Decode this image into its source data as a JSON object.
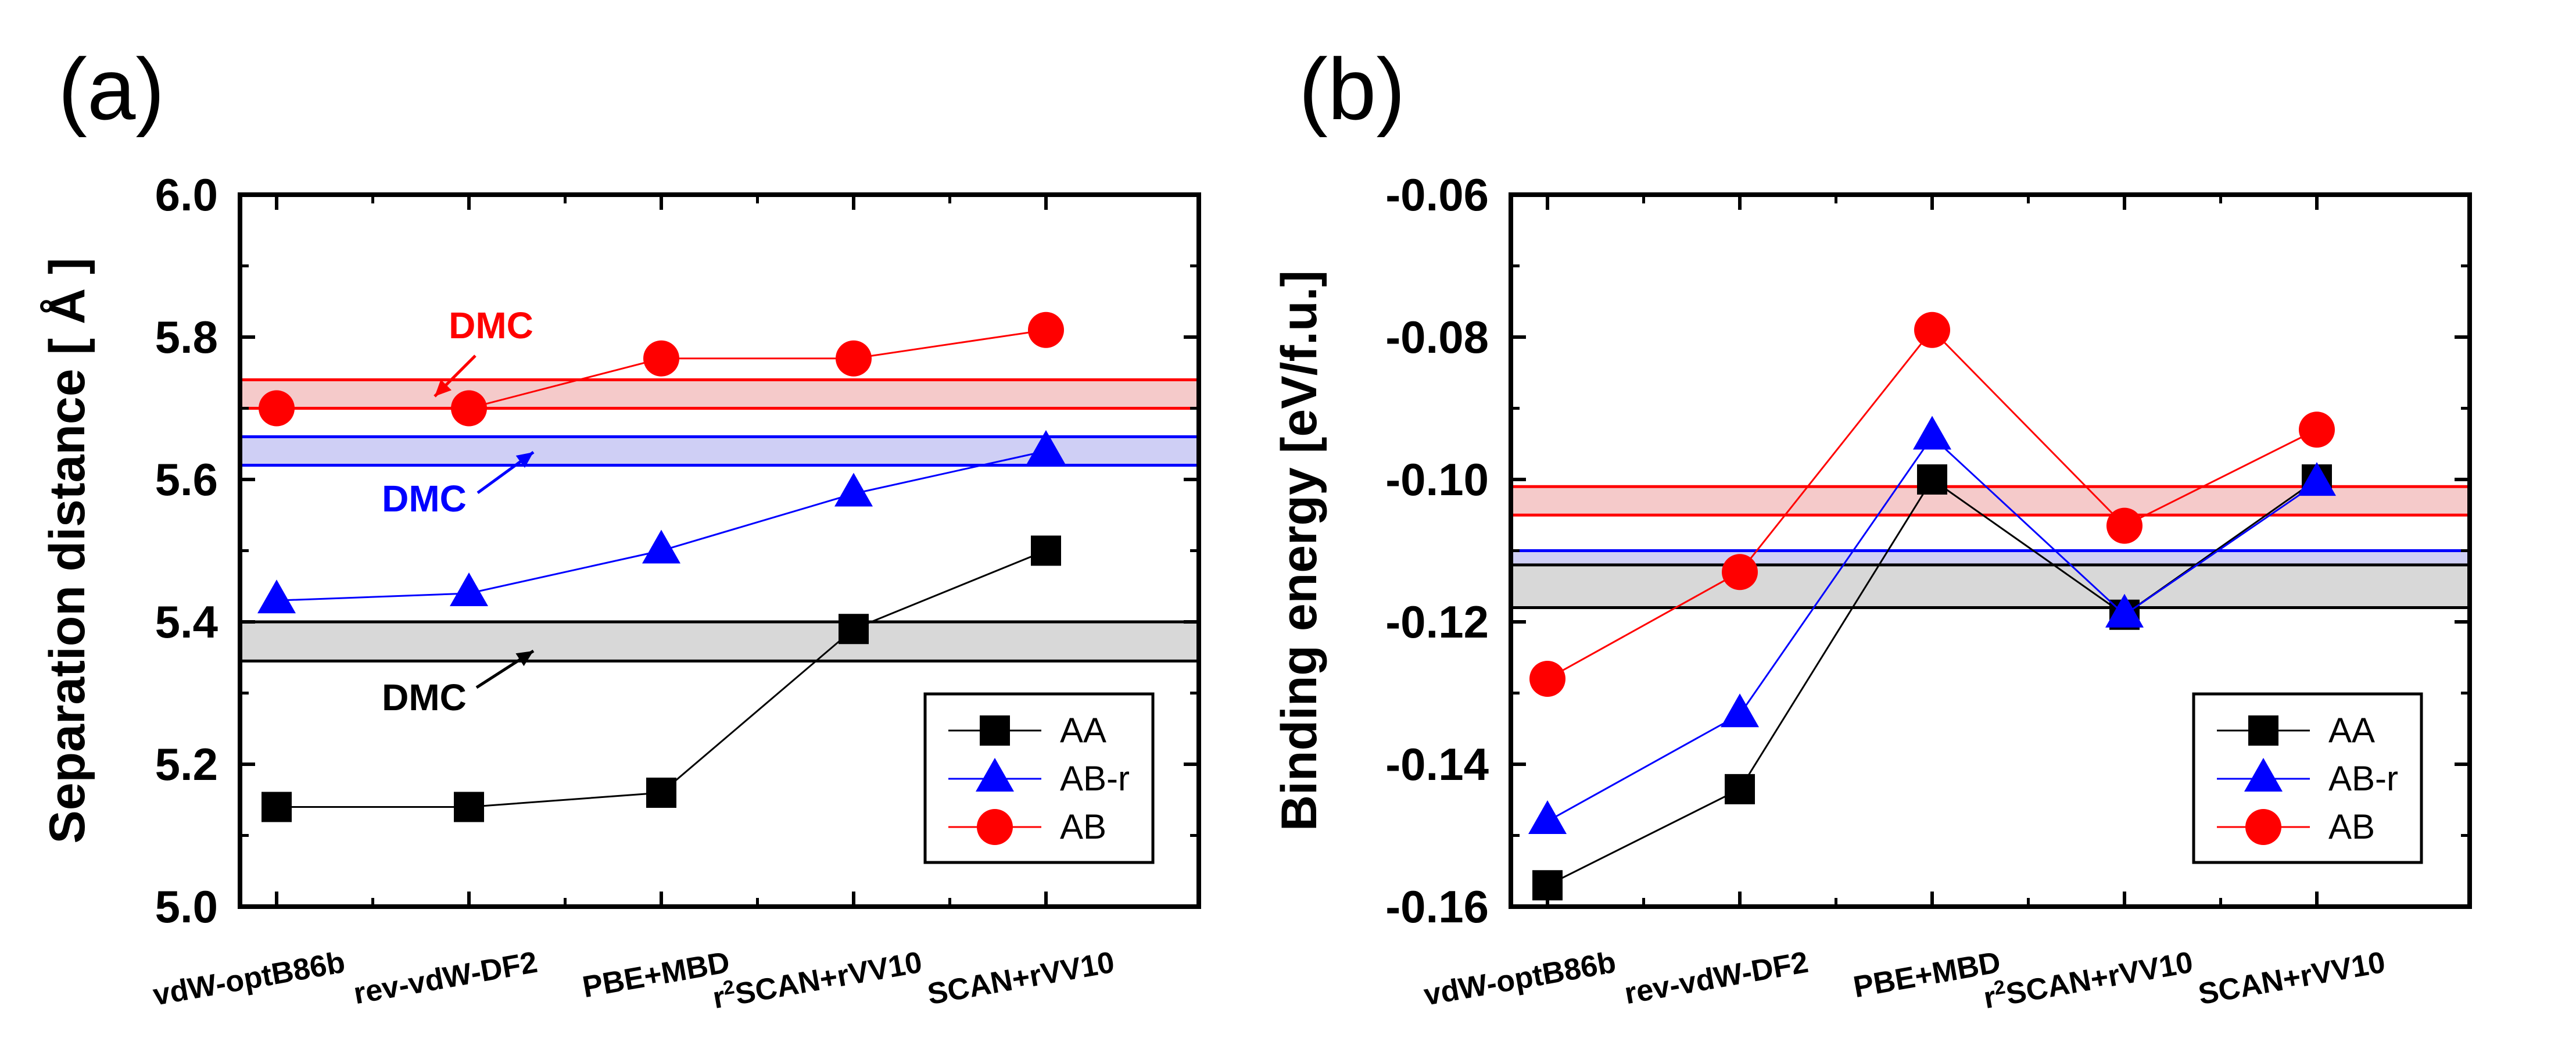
{
  "chart_data": [
    {
      "type": "line",
      "panel_label": "(a)",
      "ylabel": "Separation distance [ Å ]",
      "xlabel": "",
      "categories": [
        "vdW-optB86b",
        "rev-vdW-DF2",
        "PBE+MBD",
        "r²SCAN+rVV10",
        "SCAN+rVV10"
      ],
      "ylim": [
        5.0,
        6.0
      ],
      "yticks": [
        "5.0",
        "5.2",
        "5.4",
        "5.6",
        "5.8",
        "6.0"
      ],
      "series": [
        {
          "name": "AA",
          "color": "#000000",
          "marker": "square",
          "values": [
            5.14,
            5.14,
            5.16,
            5.39,
            5.5
          ]
        },
        {
          "name": "AB-r",
          "color": "#0000ff",
          "marker": "triangle",
          "values": [
            5.43,
            5.44,
            5.5,
            5.58,
            5.64
          ]
        },
        {
          "name": "AB",
          "color": "#ff0000",
          "marker": "circle",
          "values": [
            5.7,
            5.7,
            5.77,
            5.77,
            5.81
          ]
        }
      ],
      "dmc_bands": [
        {
          "label": "DMC",
          "series": "AB",
          "range": [
            5.7,
            5.74
          ],
          "color": "#ff0000",
          "fill": "#f5caca"
        },
        {
          "label": "DMC",
          "series": "AB-r",
          "range": [
            5.62,
            5.66
          ],
          "color": "#0000ff",
          "fill": "#cfcff5"
        },
        {
          "label": "DMC",
          "series": "AA",
          "range": [
            5.345,
            5.4
          ],
          "color": "#000000",
          "fill": "#d8d8d8"
        }
      ],
      "legend": [
        "AA",
        "AB-r",
        "AB"
      ]
    },
    {
      "type": "line",
      "panel_label": "(b)",
      "ylabel": "Binding energy [eV/f.u.]",
      "xlabel": "",
      "categories": [
        "vdW-optB86b",
        "rev-vdW-DF2",
        "PBE+MBD",
        "r²SCAN+rVV10",
        "SCAN+rVV10"
      ],
      "ylim": [
        -0.16,
        -0.06
      ],
      "yticks": [
        "-0.16",
        "-0.14",
        "-0.12",
        "-0.10",
        "-0.08",
        "-0.06"
      ],
      "series": [
        {
          "name": "AA",
          "color": "#000000",
          "marker": "square",
          "values": [
            -0.157,
            -0.1435,
            -0.1,
            -0.119,
            -0.1
          ]
        },
        {
          "name": "AB-r",
          "color": "#0000ff",
          "marker": "triangle",
          "values": [
            -0.148,
            -0.133,
            -0.094,
            -0.119,
            -0.1005
          ]
        },
        {
          "name": "AB",
          "color": "#ff0000",
          "marker": "circle",
          "values": [
            -0.128,
            -0.113,
            -0.079,
            -0.1065,
            -0.093
          ]
        }
      ],
      "dmc_bands": [
        {
          "label": "DMC",
          "series": "AB",
          "range": [
            -0.105,
            -0.101
          ],
          "color": "#ff0000",
          "fill": "#f5caca"
        },
        {
          "label": "DMC",
          "series": "AB-r",
          "range": [
            -0.114,
            -0.11
          ],
          "color": "#0000ff",
          "fill": "#cfcff5"
        },
        {
          "label": "DMC",
          "series": "AA",
          "range": [
            -0.118,
            -0.112
          ],
          "color": "#000000",
          "fill": "#d8d8d8"
        }
      ],
      "legend": [
        "AA",
        "AB-r",
        "AB"
      ]
    }
  ]
}
